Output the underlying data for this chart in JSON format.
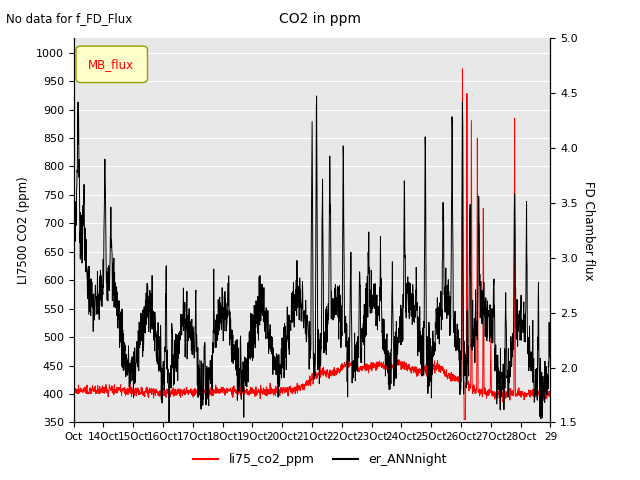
{
  "title": "CO2 in ppm",
  "subtitle": "No data for f_FD_Flux",
  "ylabel_left": "LI7500 CO2 (ppm)",
  "ylabel_right": "FD Chamber flux",
  "ylim_left": [
    350,
    1025
  ],
  "ylim_right": [
    1.5,
    5.0
  ],
  "yticks_left": [
    350,
    400,
    450,
    500,
    550,
    600,
    650,
    700,
    750,
    800,
    850,
    900,
    950,
    1000
  ],
  "yticks_right": [
    1.5,
    2.0,
    2.5,
    3.0,
    3.5,
    4.0,
    4.5,
    5.0
  ],
  "x_labels": [
    "Oct",
    "14Oct",
    "15Oct",
    "16Oct",
    "17Oct",
    "18Oct",
    "19Oct",
    "20Oct",
    "21Oct",
    "22Oct",
    "23Oct",
    "24Oct",
    "25Oct",
    "26Oct",
    "27Oct",
    "28Oct",
    "29"
  ],
  "legend_label_red": "li75_co2_ppm",
  "legend_label_black": "er_ANNnight",
  "legend_box_label": "MB_flux",
  "line_color_red": "#ff0000",
  "line_color_black": "#000000",
  "bg_color": "#e8e8e8",
  "grid_color": "#ffffff"
}
